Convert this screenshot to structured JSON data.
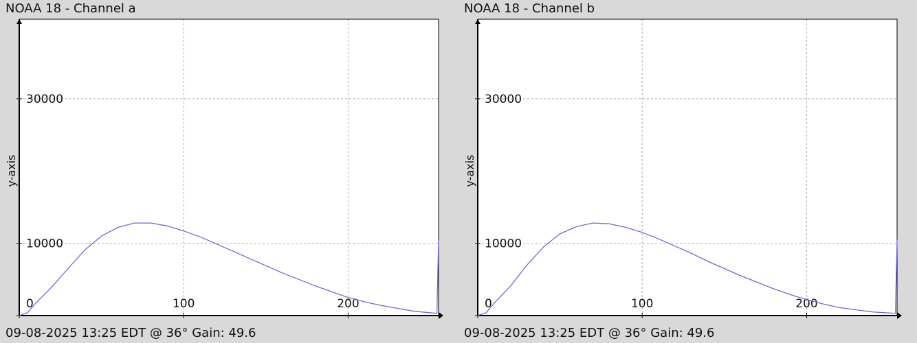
{
  "panels": [
    {
      "title": "NOAA 18 - Channel a",
      "footer": "09-08-2025 13:25 EDT @ 36° Gain: 49.6"
    },
    {
      "title": "NOAA 18 - Channel b",
      "footer": "09-08-2025 13:25 EDT @ 36° Gain: 49.6"
    }
  ],
  "colors": {
    "background": "#d9d9d9",
    "plot_background": "#ffffff",
    "series": "#6b6bd6",
    "grid": "#aaaaaa"
  },
  "chart_data": [
    {
      "type": "line",
      "title": "NOAA 18 - Channel a",
      "ylabel": "y-axis",
      "xlabel": "",
      "xlim": [
        0,
        255
      ],
      "ylim": [
        0,
        41000
      ],
      "x_ticks": [
        0,
        100,
        200
      ],
      "y_ticks": [
        0,
        10000,
        30000
      ],
      "grid": true,
      "legend": "none",
      "series": [
        {
          "x": [
            0,
            5,
            10,
            20,
            30,
            40,
            50,
            60,
            70,
            80,
            90,
            100,
            110,
            120,
            130,
            140,
            150,
            160,
            170,
            180,
            190,
            200,
            210,
            220,
            230,
            240,
            254,
            255
          ],
          "y": [
            0,
            400,
            1700,
            4000,
            6600,
            9100,
            11000,
            12200,
            12800,
            12800,
            12400,
            11700,
            10900,
            9900,
            8900,
            7900,
            6900,
            5900,
            5000,
            4100,
            3300,
            2500,
            1900,
            1400,
            1000,
            600,
            300,
            10500
          ]
        }
      ]
    },
    {
      "type": "line",
      "title": "NOAA 18 - Channel b",
      "ylabel": "y-axis",
      "xlabel": "",
      "xlim": [
        0,
        255
      ],
      "ylim": [
        0,
        41000
      ],
      "x_ticks": [
        0,
        100,
        200
      ],
      "y_ticks": [
        0,
        10000,
        30000
      ],
      "grid": true,
      "legend": "none",
      "series": [
        {
          "x": [
            0,
            5,
            10,
            20,
            30,
            40,
            50,
            60,
            70,
            80,
            90,
            100,
            110,
            120,
            130,
            140,
            150,
            160,
            170,
            180,
            190,
            200,
            210,
            220,
            230,
            240,
            254,
            255
          ],
          "y": [
            0,
            400,
            1700,
            4100,
            7000,
            9500,
            11300,
            12300,
            12800,
            12700,
            12200,
            11500,
            10600,
            9600,
            8600,
            7500,
            6500,
            5500,
            4600,
            3700,
            2900,
            2200,
            1600,
            1100,
            800,
            500,
            300,
            10500
          ]
        }
      ]
    }
  ]
}
